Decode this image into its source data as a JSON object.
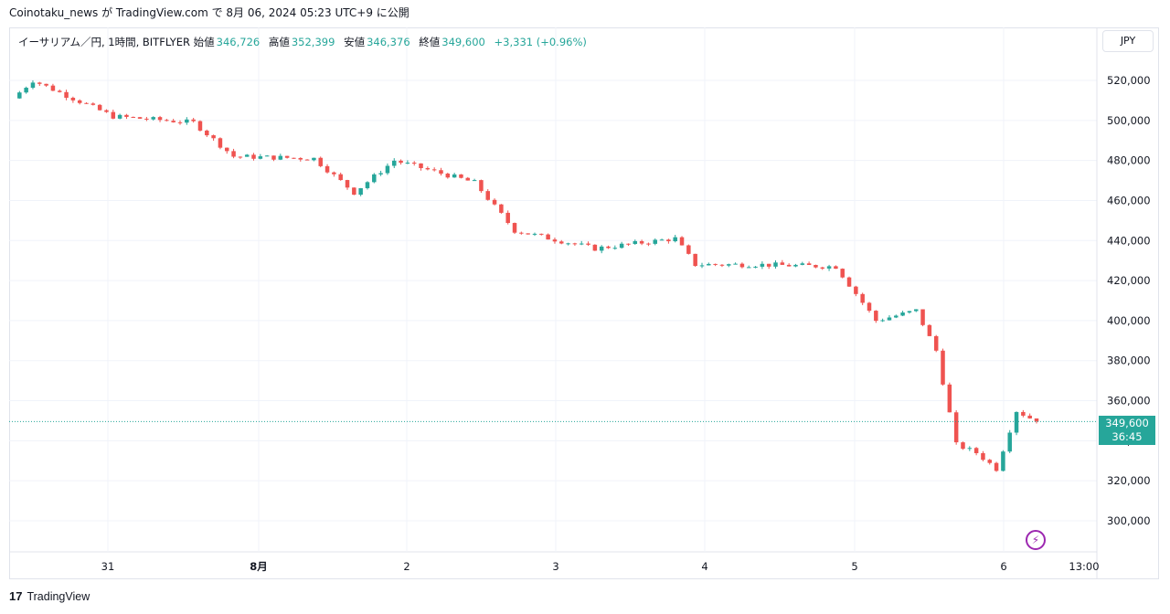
{
  "header": {
    "publisher_line": "Coinotaku_news が TradingView.com で 8月 06, 2024 05:23 UTC+9 に公開"
  },
  "legend": {
    "symbol": "イーサリアム／円, 1時間, BITFLYER",
    "open_label": "始値",
    "open_value": "346,726",
    "high_label": "高値",
    "high_value": "352,399",
    "low_label": "安値",
    "low_value": "346,376",
    "close_label": "終値",
    "close_value": "349,600",
    "change": "+3,331 (+0.96%)"
  },
  "currency_button": "JPY",
  "last_price": {
    "price": "349,600",
    "countdown": "36:45"
  },
  "footer": {
    "logo": "17",
    "brand": "TradingView"
  },
  "colors": {
    "up": "#26a69a",
    "down": "#ef5350",
    "grid": "#f0f3fa",
    "axis_text": "#131722"
  },
  "chart_data": {
    "type": "candlestick",
    "yaxis": {
      "ticks": [
        300000,
        320000,
        340000,
        360000,
        380000,
        400000,
        420000,
        440000,
        460000,
        480000,
        500000,
        520000
      ],
      "tick_labels": [
        "300,000",
        "320,000",
        "340,000",
        "360,000",
        "380,000",
        "400,000",
        "420,000",
        "440,000",
        "460,000",
        "480,000",
        "500,000",
        "520,000"
      ]
    },
    "xaxis": {
      "labels": [
        "31",
        "8月",
        "2",
        "3",
        "4",
        "5",
        "6",
        "13:00"
      ]
    },
    "last_value": 349600,
    "key_points": [
      {
        "x": "7/30 21:00",
        "y": 511000
      },
      {
        "x": "7/31 00:00",
        "y": 520000
      },
      {
        "x": "7/31 12:00",
        "y": 502000
      },
      {
        "x": "8/1 00:00",
        "y": 499000
      },
      {
        "x": "8/1 06:00",
        "y": 482000
      },
      {
        "x": "8/1 18:00",
        "y": 481000
      },
      {
        "x": "8/1 24:00",
        "y": 464000
      },
      {
        "x": "8/2 06:00",
        "y": 480000
      },
      {
        "x": "8/2 18:00",
        "y": 469000
      },
      {
        "x": "8/3 00:00",
        "y": 445000
      },
      {
        "x": "8/3 12:00",
        "y": 436000
      },
      {
        "x": "8/3 24:00",
        "y": 441000
      },
      {
        "x": "8/4 03:00",
        "y": 428000
      },
      {
        "x": "8/4 12:00",
        "y": 428000
      },
      {
        "x": "8/4 24:00",
        "y": 427000
      },
      {
        "x": "8/5 06:00",
        "y": 400000
      },
      {
        "x": "8/5 12:00",
        "y": 405000
      },
      {
        "x": "8/5 15:00",
        "y": 385000
      },
      {
        "x": "8/5 18:00",
        "y": 338000
      },
      {
        "x": "8/5 21:00",
        "y": 334000
      },
      {
        "x": "8/6 00:00",
        "y": 326000
      },
      {
        "x": "8/6 03:00",
        "y": 355000
      },
      {
        "x": "8/6 06:00",
        "y": 349600
      }
    ]
  }
}
